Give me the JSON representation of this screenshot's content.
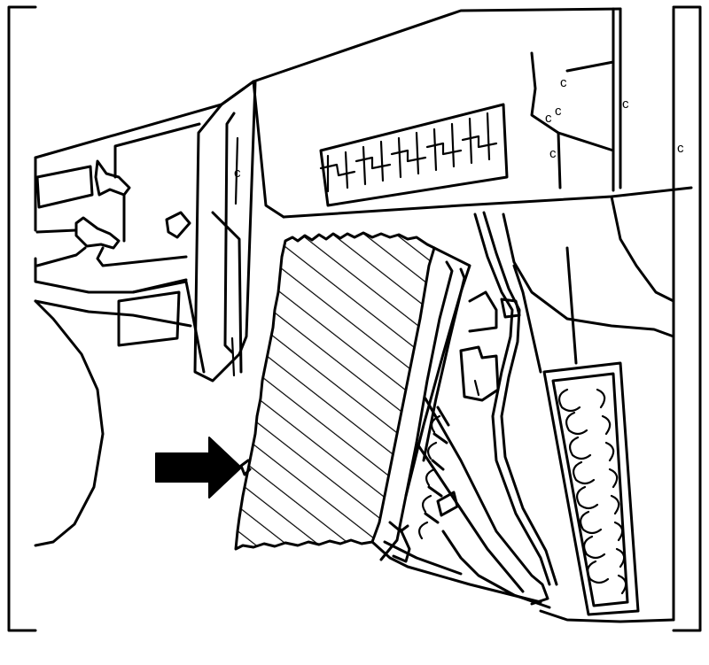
{
  "figure": {
    "kind": "technical line drawing",
    "ink_color": "#000000",
    "paper_color": "#ffffff",
    "pointer_arrow_color": "#000000",
    "highlighted_part_fill": "diagonal hatch"
  }
}
